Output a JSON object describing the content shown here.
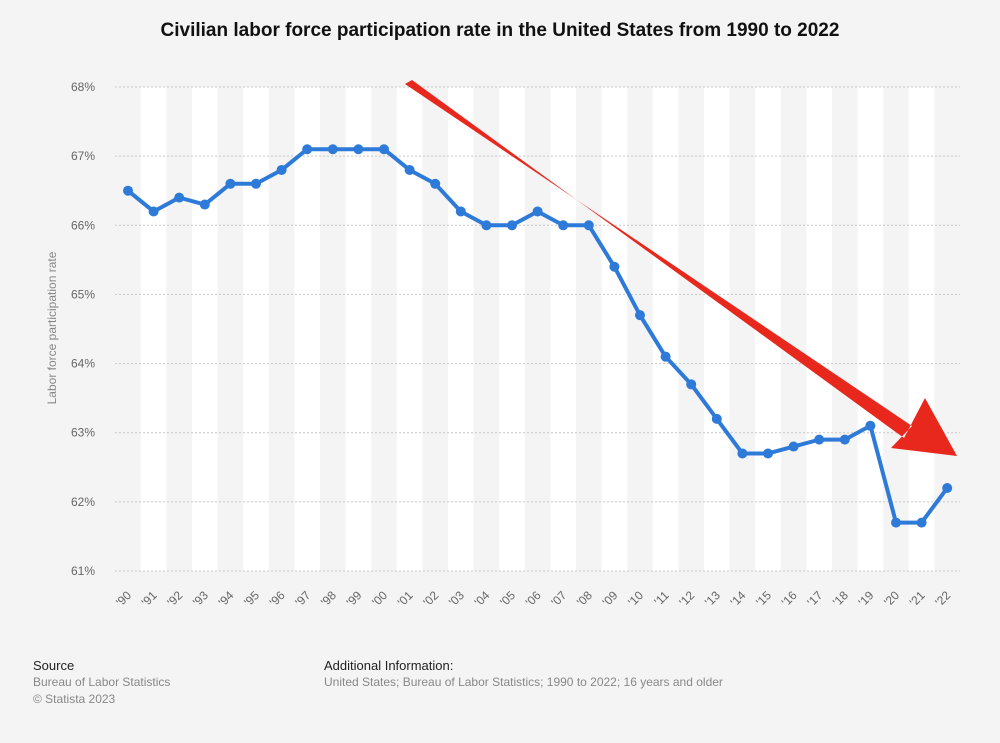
{
  "chart_data": {
    "type": "line",
    "title": "Civilian labor force participation rate in the United States from 1990 to 2022",
    "xlabel": "",
    "ylabel": "Labor force participation rate",
    "categories": [
      "'90",
      "'91",
      "'92",
      "'93",
      "'94",
      "'95",
      "'96",
      "'97",
      "'98",
      "'99",
      "'00",
      "'01",
      "'02",
      "'03",
      "'04",
      "'05",
      "'06",
      "'07",
      "'08",
      "'09",
      "'10",
      "'11",
      "'12",
      "'13",
      "'14",
      "'15",
      "'16",
      "'17",
      "'18",
      "'19",
      "'20",
      "'21",
      "'22"
    ],
    "series": [
      {
        "values": [
          66.5,
          66.2,
          66.4,
          66.3,
          66.6,
          66.6,
          66.8,
          67.1,
          67.1,
          67.1,
          67.1,
          66.8,
          66.6,
          66.2,
          66.0,
          66.0,
          66.2,
          66.0,
          66.0,
          65.4,
          64.7,
          64.1,
          63.7,
          63.2,
          62.7,
          62.7,
          62.8,
          62.9,
          62.9,
          63.1,
          61.7,
          61.7,
          62.2
        ]
      }
    ],
    "ylim": [
      61,
      68
    ],
    "yticks": [
      "61%",
      "62%",
      "63%",
      "64%",
      "65%",
      "66%",
      "67%",
      "68%"
    ],
    "grid": true,
    "line_color": "#2e7ad8",
    "arrow_color": "#e8281c"
  },
  "source": {
    "heading": "Source",
    "lines": [
      "Bureau of Labor Statistics",
      "© Statista 2023"
    ]
  },
  "additional_info": {
    "heading": "Additional Information:",
    "text": "United States; Bureau of Labor Statistics; 1990 to 2022; 16 years and older"
  }
}
